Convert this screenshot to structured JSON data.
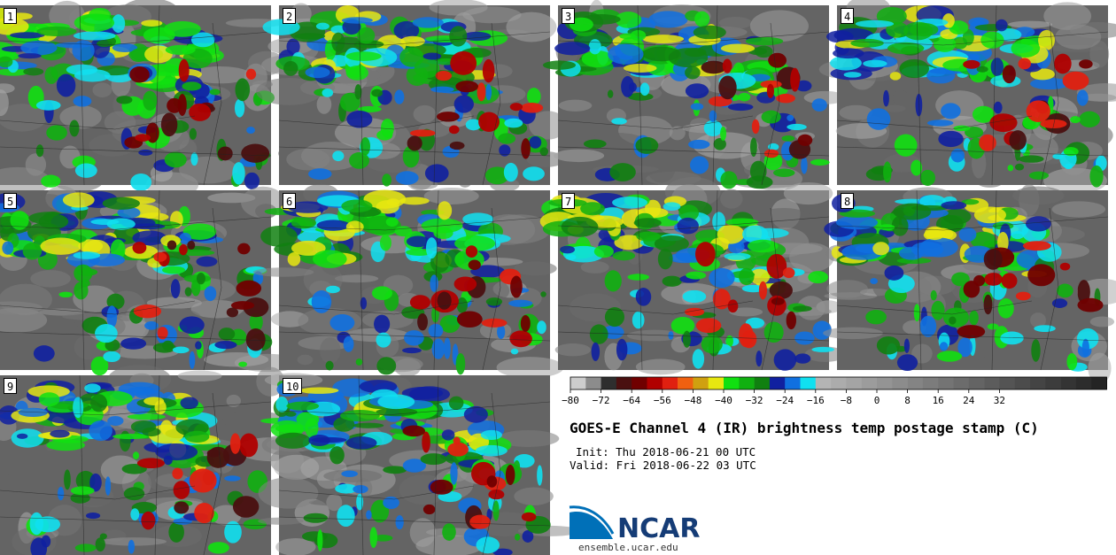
{
  "figure": {
    "title": "GOES-E Channel 4 (IR) brightness temp postage stamp (C)",
    "init": "Init: Thu 2018-06-21 00 UTC",
    "valid": "Valid: Fri 2018-06-22 03 UTC"
  },
  "panels": [
    {
      "label": "1"
    },
    {
      "label": "2"
    },
    {
      "label": "3"
    },
    {
      "label": "4"
    },
    {
      "label": "5"
    },
    {
      "label": "6"
    },
    {
      "label": "7"
    },
    {
      "label": "8"
    },
    {
      "label": "9"
    },
    {
      "label": "10"
    }
  ],
  "colorbar": {
    "ticks": [
      "−80",
      "−72",
      "−64",
      "−56",
      "−48",
      "−40",
      "−32",
      "−24",
      "−16",
      "−8",
      "0",
      "8",
      "16",
      "24",
      "32"
    ],
    "colors": [
      "#cdcdcd",
      "#8c8c8c",
      "#2e2e2e",
      "#4a1010",
      "#700000",
      "#b00000",
      "#e02010",
      "#f06010",
      "#d0a010",
      "#e8e810",
      "#10e010",
      "#10b010",
      "#108010",
      "#1020a0",
      "#1070e0",
      "#10e0f0",
      "#b4b4b4",
      "#acacac",
      "#a4a4a4",
      "#9c9c9c",
      "#949494",
      "#8c8c8c",
      "#848484",
      "#7c7c7c",
      "#747474",
      "#6c6c6c",
      "#646464",
      "#5c5c5c",
      "#545454",
      "#4c4c4c",
      "#444444",
      "#3c3c3c",
      "#343434",
      "#2c2c2c",
      "#242424"
    ]
  },
  "logo": {
    "name": "NCAR",
    "url": "ensemble.ucar.edu"
  }
}
